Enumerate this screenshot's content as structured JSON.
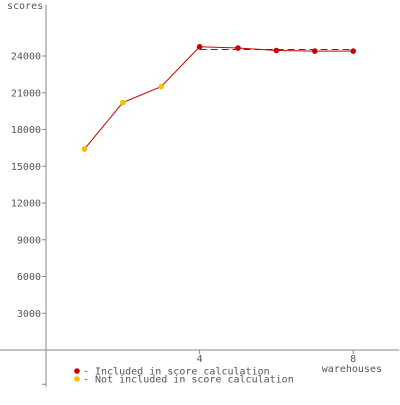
{
  "chart_data": {
    "type": "line",
    "ylabel": "scores",
    "xlabel": "warehouses",
    "xlim": [
      0,
      9.2
    ],
    "ylim": [
      -3000,
      28200
    ],
    "x_ticks": [
      4,
      8
    ],
    "y_ticks": [
      3000,
      6000,
      9000,
      12000,
      15000,
      18000,
      21000,
      24000
    ],
    "grid": false,
    "legend_position": "bottom-center",
    "series": [
      {
        "name": "Included in score calculation",
        "color": "#cc0000",
        "points": [
          [
            4,
            24750
          ],
          [
            5,
            24650
          ],
          [
            6,
            24450
          ],
          [
            7,
            24400
          ],
          [
            8,
            24400
          ]
        ]
      },
      {
        "name": "Not included in score calculation",
        "color": "#f2c200",
        "points": [
          [
            1,
            16400
          ],
          [
            2,
            20200
          ],
          [
            3,
            21500
          ]
        ]
      }
    ],
    "score_line": {
      "style": "dashed",
      "color": "#cc0000",
      "y": 24530,
      "x_range": [
        4,
        8
      ]
    },
    "connecting_line_color": "#cc0000"
  }
}
